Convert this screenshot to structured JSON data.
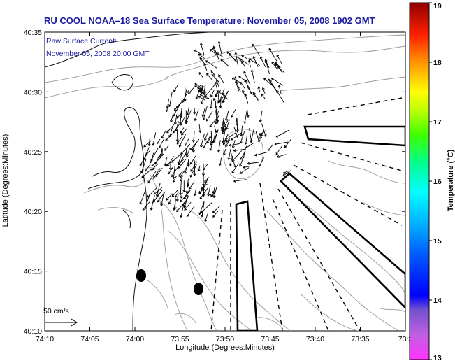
{
  "title": "RU COOL  NOAA–18  Sea Surface Temperature:  November 05, 2008 1902 GMT",
  "legend": {
    "line1": "Raw Surface Current:",
    "line2": "November 05, 2008 20:00 GMT"
  },
  "scale": {
    "label": "50 cm/s"
  },
  "axes": {
    "xlabel": "Longitude (Degrees:Minutes)",
    "ylabel": "Latitude (Degrees:Minutes)",
    "x_ticks": [
      "74:10",
      "74:05",
      "74:00",
      "73:55",
      "73:50",
      "73:45",
      "73:40",
      "73:35",
      "73:3"
    ],
    "y_ticks": [
      "40:35",
      "40:30",
      "40:25",
      "40:20",
      "40:15",
      "40:10"
    ]
  },
  "colorbar": {
    "label": "Temperature (°C)",
    "ticks": [
      "19",
      "18",
      "17",
      "16",
      "15",
      "14",
      "13"
    ],
    "min": 13,
    "max": 19
  },
  "colors": {
    "title": "#1a1aa0",
    "coast": "#111111",
    "contour": "#999999"
  }
}
